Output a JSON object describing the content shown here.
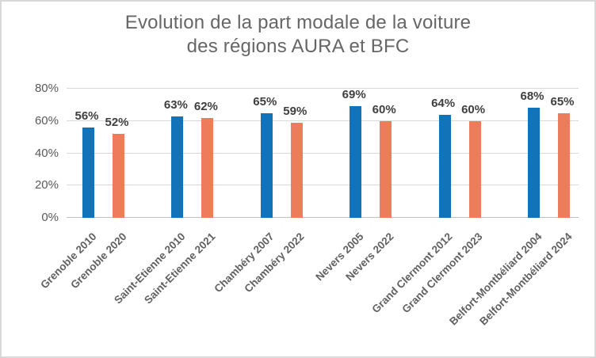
{
  "chart_data": {
    "type": "bar",
    "title": "Evolution de la part modale de la voiture des régions AURA et BFC",
    "title_line1": "Evolution de la part modale de la voiture",
    "title_line2": "des régions AURA et BFC",
    "categories": [
      "Grenoble 2010",
      "Grenoble 2020",
      "Saint-Etienne 2010",
      "Saint-Etienne 2021",
      "Chambéry 2007",
      "Chambéry 2022",
      "Nevers 2005",
      "Nevers 2022",
      "Grand Clermont 2012",
      "Grand Clermont 2023",
      "Belfort-Montbéliard 2004",
      "Belfort-Montbéliard 2024"
    ],
    "values": [
      56,
      52,
      63,
      62,
      65,
      59,
      69,
      60,
      64,
      60,
      68,
      65
    ],
    "data_labels": [
      "56%",
      "52%",
      "63%",
      "62%",
      "65%",
      "59%",
      "69%",
      "60%",
      "64%",
      "60%",
      "68%",
      "65%"
    ],
    "bar_color_pattern": "alternating",
    "bar_colors_cycle": [
      "#1273B8",
      "#ED7C5C"
    ],
    "xlabel": "",
    "ylabel": "",
    "y_axis": {
      "min": 0,
      "max": 80,
      "ticks": [
        "0%",
        "20%",
        "40%",
        "60%",
        "80%"
      ],
      "tick_values": [
        0,
        20,
        40,
        60,
        80
      ]
    },
    "grid": true,
    "legend": false
  },
  "colors": {
    "series_blue": "#1273B8",
    "series_orange": "#ED7C5C",
    "gridline": "#D9D9D9",
    "axis_line": "#BFBFBF",
    "title_text": "#666666",
    "tick_text": "#595959",
    "category_text": "#616161",
    "data_label_text": "#3F3F3F",
    "frame_border": "#D8D8D8",
    "background": "#FFFFFF"
  }
}
